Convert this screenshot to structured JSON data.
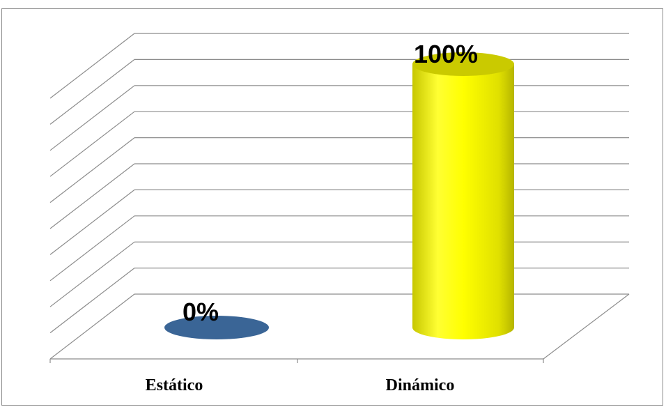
{
  "chart_data": {
    "type": "bar",
    "style": "3d-cylinder",
    "categories": [
      "Estático",
      "Dinámico"
    ],
    "values": [
      0,
      100
    ],
    "data_labels": [
      "0%",
      "100%"
    ],
    "colors": [
      "#3a6596",
      "#ffff00"
    ],
    "ylim": [
      0,
      100
    ],
    "grid": true,
    "legend": "none"
  }
}
